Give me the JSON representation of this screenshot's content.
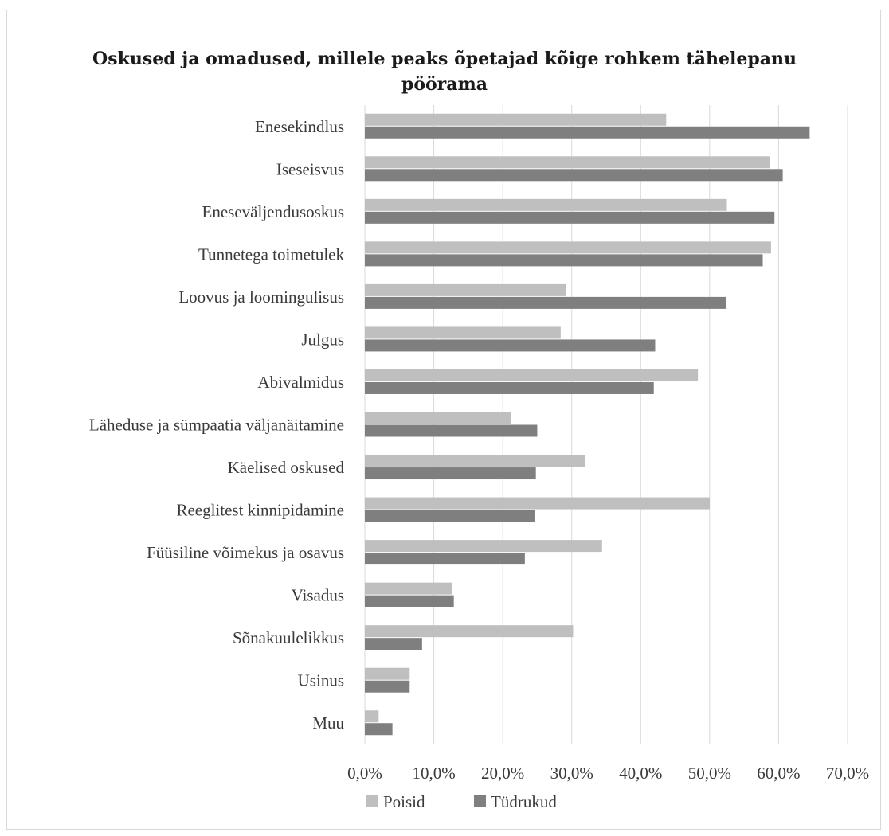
{
  "chart_data": {
    "type": "bar",
    "orientation": "horizontal",
    "title": [
      "Oskused ja omadused, millele peaks õpetajad kõige rohkem tähelepanu",
      "pöörama"
    ],
    "categories": [
      "Enesekindlus",
      "Iseseisvus",
      "Eneseväljendusoskus",
      "Tunnetega toimetulek",
      "Loovus ja loomingulisus",
      "Julgus",
      "Abivalmidus",
      "Läheduse ja sümpaatia väljanäitamine",
      "Käelised oskused",
      "Reeglitest kinnipidamine",
      "Füüsiline võimekus ja osavus",
      "Visadus",
      "Sõnakuulelikkus",
      "Usinus",
      "Muu"
    ],
    "series": [
      {
        "name": "Poisid",
        "color": "#bfbfbf",
        "values": [
          43.7,
          58.7,
          52.5,
          58.9,
          29.2,
          28.4,
          48.3,
          21.2,
          32.0,
          50.0,
          34.4,
          12.7,
          30.2,
          6.5,
          2.0
        ]
      },
      {
        "name": "Tüdrukud",
        "color": "#7f7f7f",
        "values": [
          64.5,
          60.6,
          59.4,
          57.7,
          52.4,
          42.1,
          41.9,
          25.0,
          24.8,
          24.6,
          23.2,
          12.9,
          8.3,
          6.5,
          4.0
        ]
      }
    ],
    "xlim": [
      0,
      70
    ],
    "xticks": [
      "0,0%",
      "10,0%",
      "20,0%",
      "30,0%",
      "40,0%",
      "50,0%",
      "60,0%",
      "70,0%"
    ],
    "grid": "vertical",
    "legend_position": "bottom",
    "xlabel": "",
    "ylabel": ""
  }
}
